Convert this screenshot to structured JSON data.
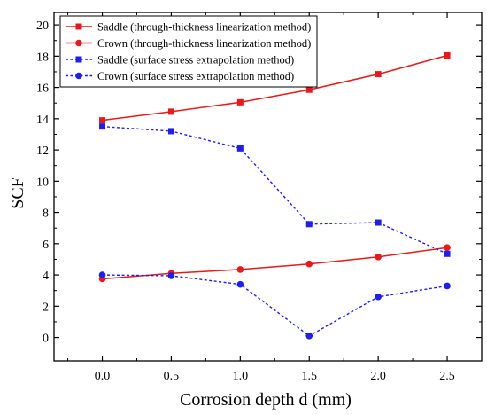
{
  "chart_data": {
    "type": "line",
    "xlabel": "Corrosion depth d (mm)",
    "ylabel": "SCF",
    "x": [
      0.0,
      0.5,
      1.0,
      1.5,
      2.0,
      2.5
    ],
    "xticks": [
      "0.0",
      "0.5",
      "1.0",
      "1.5",
      "2.0",
      "2.5"
    ],
    "yticks": [
      "0",
      "2",
      "4",
      "6",
      "8",
      "10",
      "12",
      "14",
      "16",
      "18",
      "20"
    ],
    "xlim": [
      -0.35,
      2.75
    ],
    "ylim": [
      -1.5,
      20.8
    ],
    "legend_position": "top-left",
    "grid": false,
    "series": [
      {
        "name": "Saddle (through-thickness linearization method)",
        "color": "#e41a1c",
        "line": "solid",
        "marker": "square",
        "values": [
          13.9,
          14.45,
          15.05,
          15.85,
          16.85,
          18.05
        ]
      },
      {
        "name": "Crown (through-thickness linearization method)",
        "color": "#e41a1c",
        "line": "solid",
        "marker": "circle",
        "values": [
          3.75,
          4.1,
          4.35,
          4.7,
          5.15,
          5.75
        ]
      },
      {
        "name": "Saddle (surface stress extrapolation method)",
        "color": "#1f1fe6",
        "line": "dashed",
        "marker": "square",
        "values": [
          13.5,
          13.2,
          12.1,
          7.25,
          7.35,
          5.35
        ]
      },
      {
        "name": "Crown (surface stress extrapolation method)",
        "color": "#1f1fe6",
        "line": "dashed",
        "marker": "circle",
        "values": [
          4.0,
          3.95,
          3.4,
          0.1,
          2.6,
          3.3
        ]
      }
    ]
  }
}
